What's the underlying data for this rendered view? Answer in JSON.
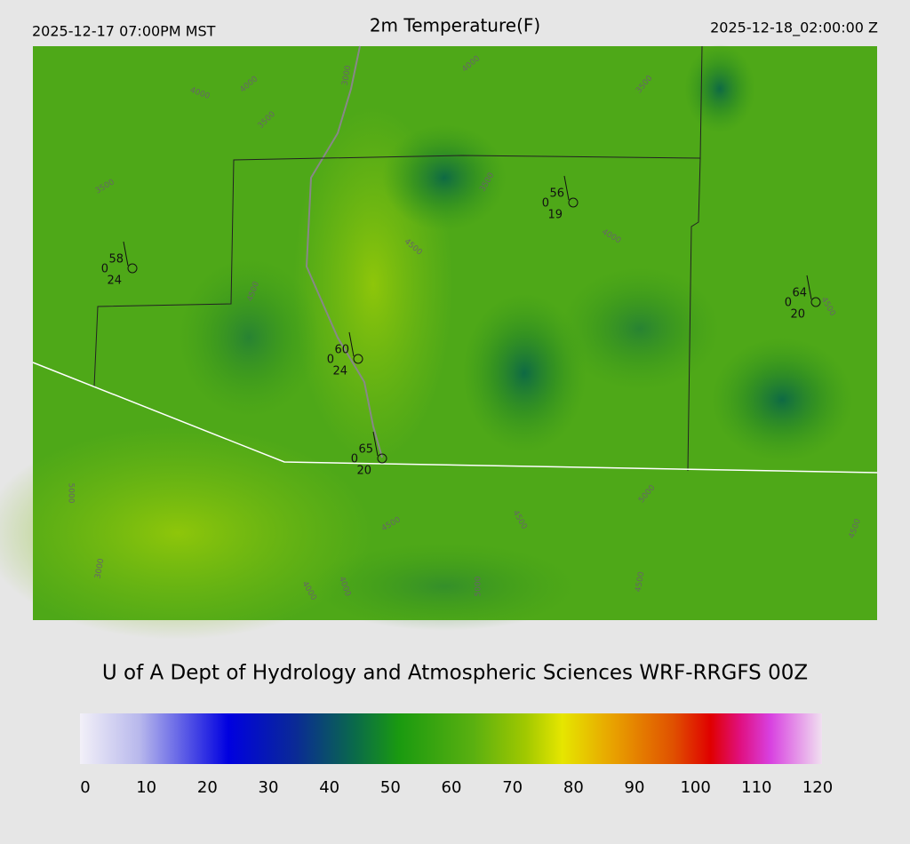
{
  "header": {
    "left": "2025-12-17 07:00PM MST",
    "title": "2m Temperature(F)",
    "right": "2025-12-18_02:00:00 Z"
  },
  "stations": [
    {
      "temp": "58",
      "code": "0",
      "dew": "24"
    },
    {
      "temp": "56",
      "code": "0",
      "dew": "19"
    },
    {
      "temp": "64",
      "code": "0",
      "dew": "20"
    },
    {
      "temp": "60",
      "code": "0",
      "dew": "24"
    },
    {
      "temp": "65",
      "code": "0",
      "dew": "20"
    }
  ],
  "contour_labels": [
    "4000",
    "4000",
    "3000",
    "3500",
    "4000",
    "3500",
    "4500",
    "4500",
    "3500",
    "4000",
    "4500",
    "3500",
    "4500",
    "4500",
    "5000",
    "3000",
    "4000",
    "4000",
    "5000",
    "5000",
    "4500",
    "4500"
  ],
  "credit": "U of A Dept of Hydrology and Atmospheric Sciences WRF-RRGFS 00Z",
  "colorbar": {
    "ticks": [
      0,
      10,
      20,
      30,
      40,
      50,
      60,
      70,
      80,
      90,
      100,
      110,
      120
    ],
    "range": [
      0,
      120
    ]
  }
}
